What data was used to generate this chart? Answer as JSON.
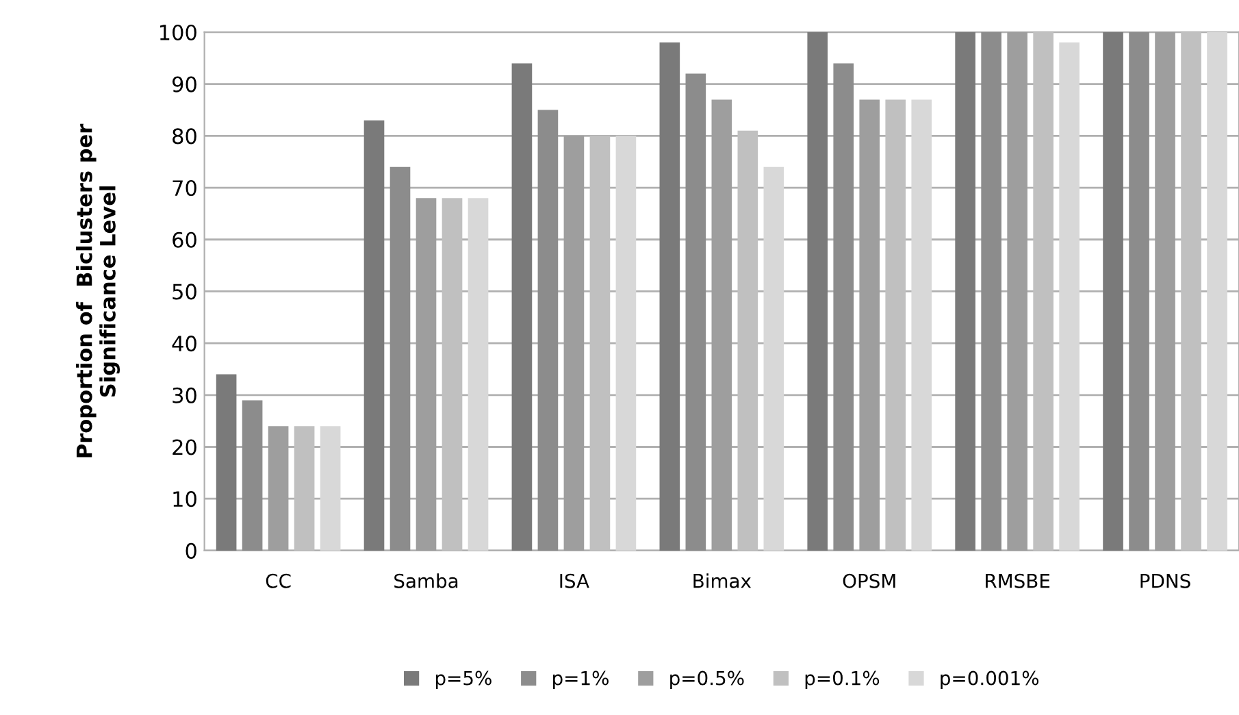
{
  "chart_data": {
    "type": "bar",
    "ylabel": "Proportion of  Biclusters per\nSignificance Level",
    "categories": [
      "CC",
      "Samba",
      "ISA",
      "Bimax",
      "OPSM",
      "RMSBE",
      "PDNS"
    ],
    "series": [
      {
        "name": "p=5%",
        "color": "#7a7a7a",
        "values": [
          34,
          83,
          94,
          98,
          100,
          100,
          100
        ]
      },
      {
        "name": "p=1%",
        "color": "#8c8c8c",
        "values": [
          29,
          74,
          85,
          92,
          94,
          100,
          100
        ]
      },
      {
        "name": "p=0.5%",
        "color": "#9e9e9e",
        "values": [
          24,
          68,
          80,
          87,
          87,
          100,
          100
        ]
      },
      {
        "name": "p=0.1%",
        "color": "#c0c0c0",
        "values": [
          24,
          68,
          80,
          81,
          87,
          100,
          100
        ]
      },
      {
        "name": "p=0.001%",
        "color": "#d8d8d8",
        "values": [
          24,
          68,
          80,
          74,
          87,
          98,
          100
        ]
      }
    ],
    "ylim": [
      0,
      100
    ],
    "yticks": [
      0,
      10,
      20,
      30,
      40,
      50,
      60,
      70,
      80,
      90,
      100
    ],
    "grid": "y",
    "legend": "bottom"
  }
}
